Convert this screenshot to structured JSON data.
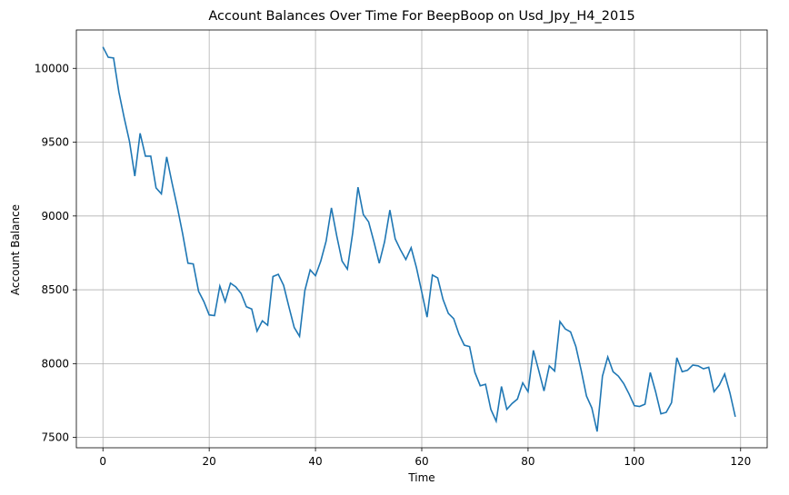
{
  "chart_data": {
    "type": "line",
    "title": "Account Balances Over Time For BeepBoop on Usd_Jpy_H4_2015",
    "xlabel": "Time",
    "ylabel": "Account Balance",
    "xlim": [
      -5,
      125
    ],
    "ylim": [
      7430,
      10260
    ],
    "xticks": [
      0,
      20,
      40,
      60,
      80,
      100,
      120
    ],
    "yticks": [
      7500,
      8000,
      8500,
      9000,
      9500,
      10000
    ],
    "grid": true,
    "line_color": "#1f77b4",
    "series": [
      {
        "x": [
          0,
          1,
          2,
          3,
          4,
          5,
          6,
          7,
          8,
          9,
          10,
          11,
          12,
          13,
          14,
          15,
          16,
          17,
          18,
          19,
          20,
          21,
          22,
          23,
          24,
          25,
          26,
          27,
          28,
          29,
          30,
          31,
          32,
          33,
          34,
          35,
          36,
          37,
          38,
          39,
          40,
          41,
          42,
          43,
          44,
          45,
          46,
          47,
          48,
          49,
          50,
          51,
          52,
          53,
          54,
          55,
          56,
          57,
          58,
          59,
          60,
          61,
          62,
          63,
          64,
          65,
          66,
          67,
          68,
          69,
          70,
          71,
          72,
          73,
          74,
          75,
          76,
          77,
          78,
          79,
          80,
          81,
          82,
          83,
          84,
          85,
          86,
          87,
          88,
          89,
          90,
          91,
          92,
          93,
          94,
          95,
          96,
          97,
          98,
          99,
          100,
          101,
          102,
          103,
          104,
          105,
          106,
          107,
          108,
          109,
          110,
          111,
          112,
          113,
          114,
          115,
          116,
          117,
          118,
          119
        ],
        "values": [
          10145,
          10075,
          10070,
          9840,
          9665,
          9505,
          9270,
          9560,
          9405,
          9405,
          9190,
          9150,
          9400,
          9225,
          9060,
          8880,
          8680,
          8675,
          8490,
          8420,
          8330,
          8325,
          8525,
          8420,
          8545,
          8520,
          8475,
          8385,
          8370,
          8220,
          8290,
          8260,
          8590,
          8605,
          8530,
          8385,
          8245,
          8185,
          8495,
          8635,
          8595,
          8695,
          8830,
          9055,
          8865,
          8695,
          8640,
          8885,
          9195,
          9010,
          8960,
          8825,
          8680,
          8825,
          9040,
          8845,
          8770,
          8705,
          8785,
          8650,
          8485,
          8315,
          8600,
          8580,
          8435,
          8340,
          8305,
          8200,
          8125,
          8115,
          7940,
          7850,
          7860,
          7690,
          7610,
          7845,
          7690,
          7730,
          7760,
          7870,
          7810,
          8090,
          7955,
          7815,
          7985,
          7950,
          8285,
          8235,
          8215,
          8115,
          7955,
          7780,
          7700,
          7540,
          7915,
          8045,
          7945,
          7915,
          7865,
          7795,
          7715,
          7710,
          7725,
          7940,
          7810,
          7660,
          7670,
          7735,
          8040,
          7945,
          7955,
          7990,
          7985,
          7965,
          7975,
          7810,
          7855,
          7930,
          7800,
          7640
        ]
      }
    ]
  }
}
